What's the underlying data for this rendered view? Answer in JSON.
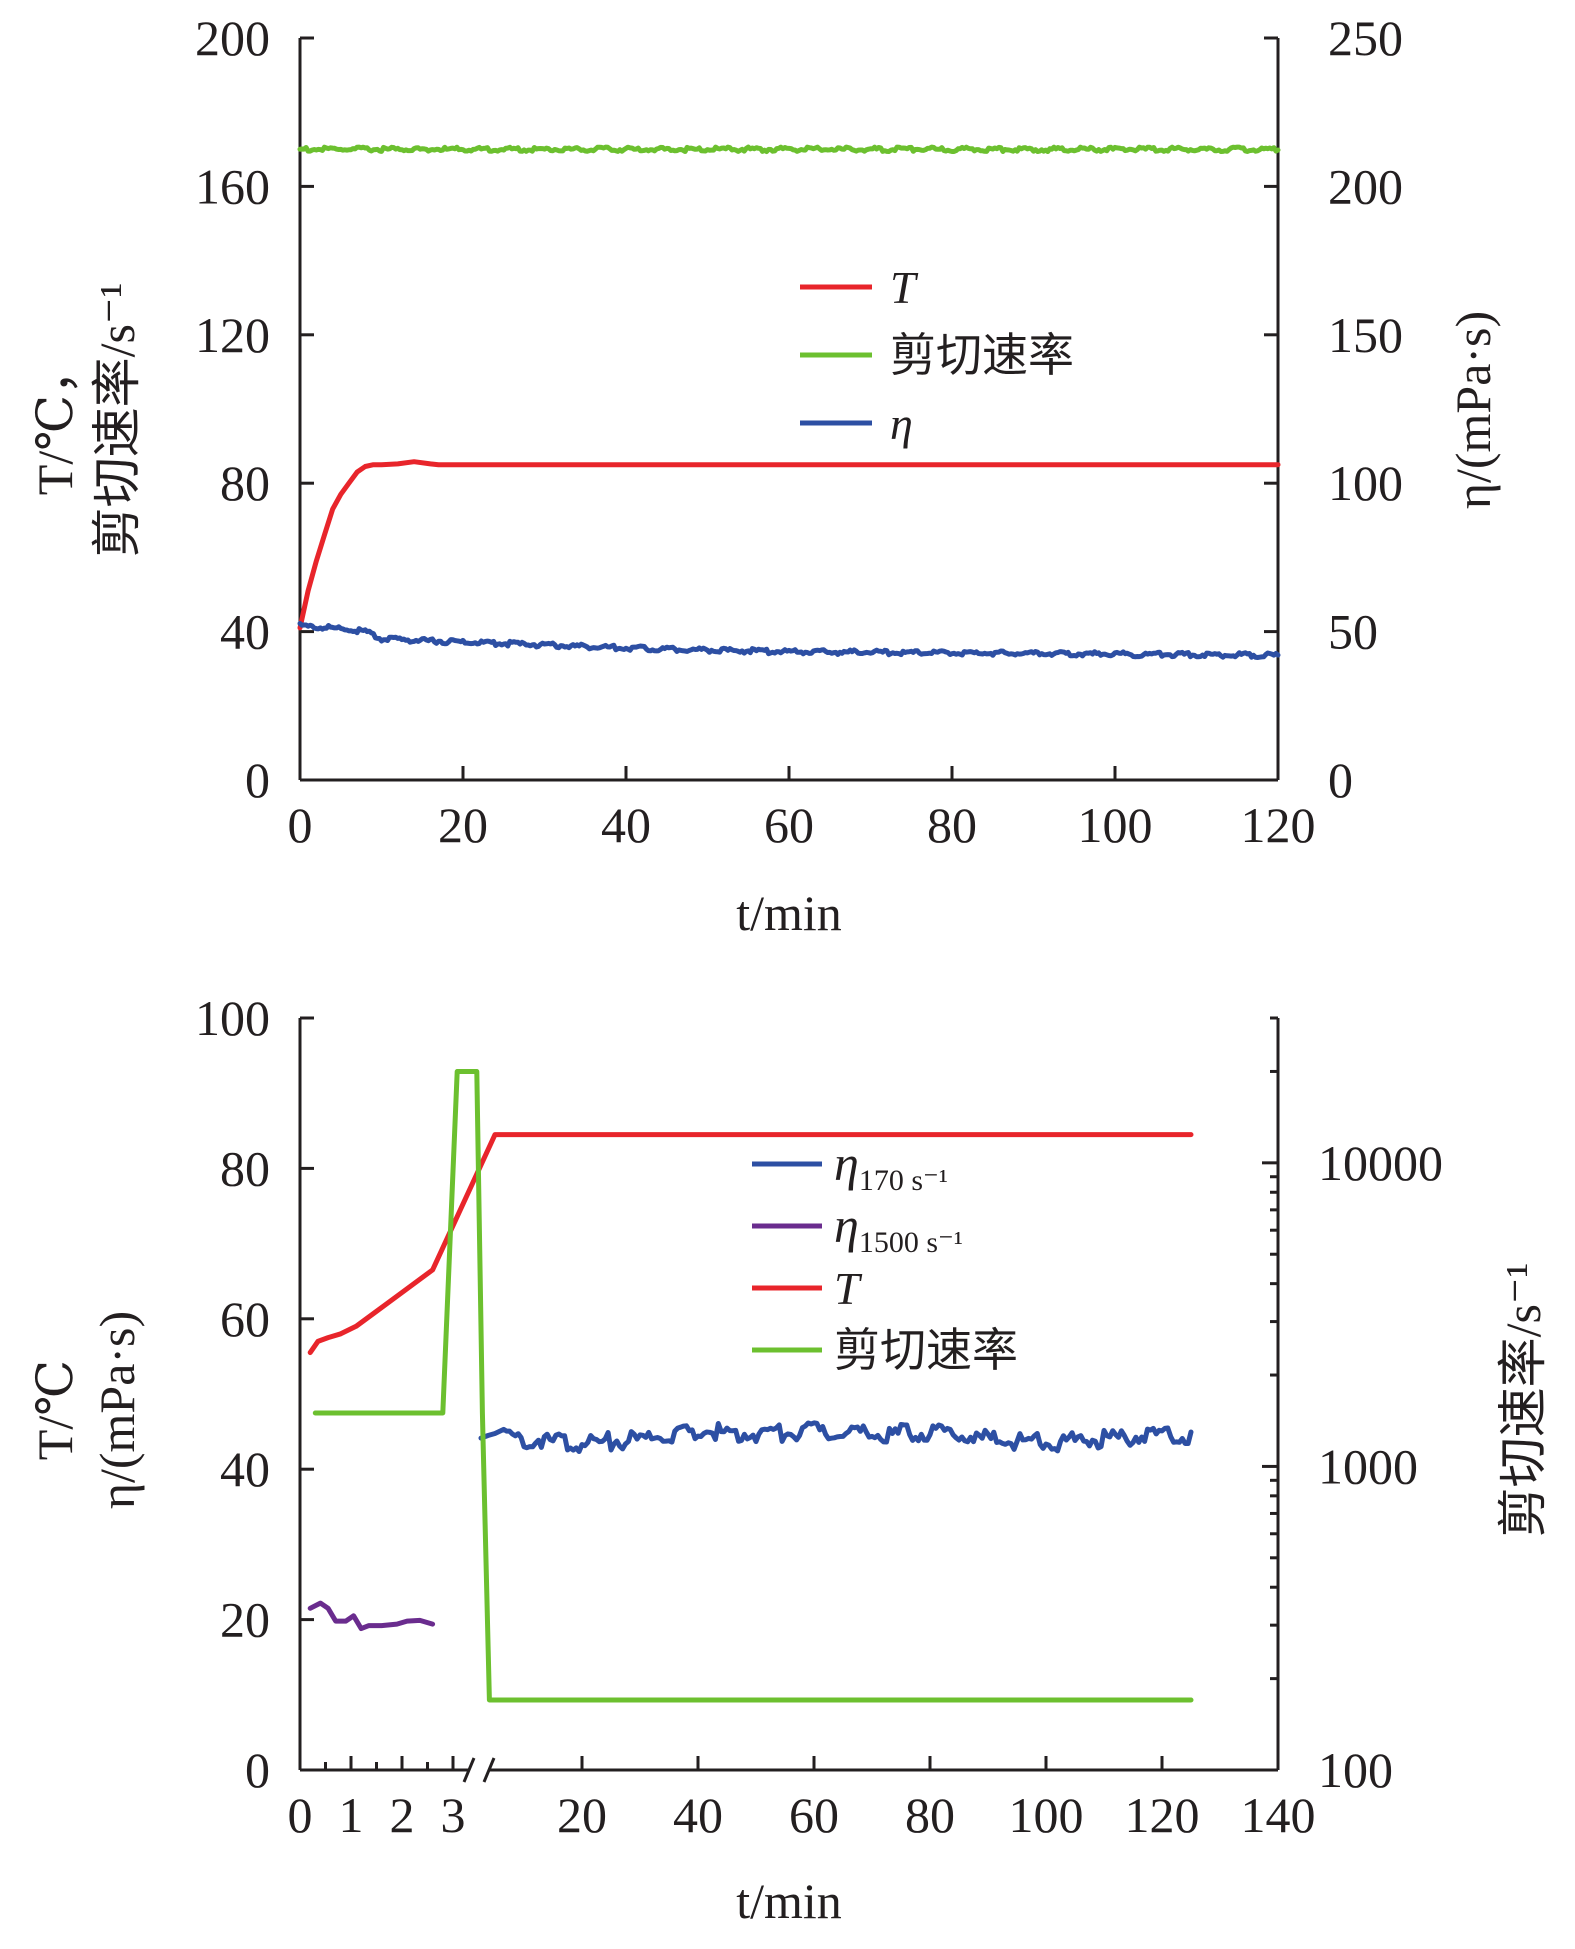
{
  "chart_data": [
    {
      "type": "line",
      "xlabel": "t/min",
      "ylabel_left": [
        "T/℃，",
        "剪切速率/s⁻¹"
      ],
      "ylabel_right": "η/(mPa·s)",
      "xlim": [
        0,
        120
      ],
      "ylim_left": [
        0,
        200
      ],
      "ylim_right": [
        0,
        250
      ],
      "x_ticks": [
        0,
        20,
        40,
        60,
        80,
        100,
        120
      ],
      "y_ticks_left": [
        0,
        40,
        80,
        120,
        160,
        200
      ],
      "y_ticks_right": [
        0,
        50,
        100,
        150,
        200,
        250
      ],
      "legend_position": "center",
      "series": [
        {
          "name": "T",
          "axis": "left",
          "color": "#e8252b",
          "x": [
            0,
            1,
            2,
            3,
            4,
            5,
            6,
            7,
            8,
            9,
            10,
            12,
            14,
            16,
            17,
            20,
            40,
            60,
            80,
            100,
            120
          ],
          "values": [
            41,
            51,
            59,
            66,
            73,
            77,
            80,
            83,
            84.5,
            85,
            85,
            85.2,
            85.8,
            85.2,
            85,
            85,
            85,
            85,
            85,
            85,
            85
          ]
        },
        {
          "name": "剪切速率",
          "axis": "left",
          "color": "#6cc02f",
          "x": [
            0,
            120
          ],
          "values": [
            170,
            170
          ]
        },
        {
          "name": "η",
          "axis": "right",
          "color": "#2d4fa3",
          "x": [
            0,
            2,
            5,
            8,
            10,
            15,
            20,
            30,
            40,
            50,
            60,
            70,
            80,
            90,
            100,
            110,
            120
          ],
          "values": [
            52,
            51.5,
            51,
            50,
            47.5,
            47,
            46.5,
            45.5,
            44.5,
            43.8,
            43.2,
            43,
            42.8,
            42.6,
            42.4,
            42.2,
            42
          ]
        }
      ]
    },
    {
      "type": "line",
      "xlabel": "t/min",
      "ylabel_left": [
        "T/℃",
        "η/(mPa·s)"
      ],
      "ylabel_right": "剪切速率/s⁻¹",
      "ylim_left": [
        0,
        100
      ],
      "y_scale_right": "log",
      "ylim_right": [
        100,
        30000
      ],
      "x_axis_break": "between 3 and 20",
      "x_ticks": [
        "0",
        "1",
        "2",
        "3",
        "20",
        "40",
        "60",
        "80",
        "100",
        "120",
        "140"
      ],
      "y_ticks_left": [
        0,
        20,
        40,
        60,
        80,
        100
      ],
      "y_ticks_right": [
        "100",
        "1000",
        "10000"
      ],
      "legend_position": "center",
      "series": [
        {
          "name": "η170 s⁻¹",
          "axis": "left",
          "color": "#2d4fa3",
          "x": [
            5,
            10,
            20,
            30,
            40,
            50,
            60,
            70,
            80,
            90,
            100,
            110,
            120,
            125
          ],
          "values": [
            45,
            44,
            43.5,
            44,
            45,
            44.8,
            45,
            44.5,
            45,
            44,
            43.5,
            44,
            44.5,
            44
          ]
        },
        {
          "name": "η1500 s⁻¹",
          "axis": "left",
          "color": "#6a2c8e",
          "x": [
            0.2,
            0.4,
            0.55,
            0.7,
            0.9,
            1.05,
            1.2,
            1.35,
            1.6,
            1.9,
            2.1,
            2.35,
            2.6
          ],
          "values": [
            21.5,
            22.2,
            21.5,
            19.8,
            19.8,
            20.5,
            18.8,
            19.2,
            19.2,
            19.4,
            19.8,
            19.9,
            19.4
          ]
        },
        {
          "name": "T",
          "axis": "left",
          "color": "#e8252b",
          "x": [
            0.2,
            0.35,
            0.55,
            0.8,
            1.1,
            1.5,
            2.0,
            2.6,
            6,
            125
          ],
          "values": [
            55.5,
            57,
            57.5,
            58,
            59,
            61,
            63.5,
            66.5,
            84.5,
            84.5
          ]
        },
        {
          "name": "剪切速率",
          "axis": "right",
          "color": "#6cc02f",
          "x": [
            0.3,
            2.8,
            3.3,
            4.7,
            5.1,
            5.6,
            125
          ],
          "values": [
            1500,
            1500,
            20000,
            20000,
            1500,
            170,
            170
          ]
        }
      ]
    }
  ]
}
